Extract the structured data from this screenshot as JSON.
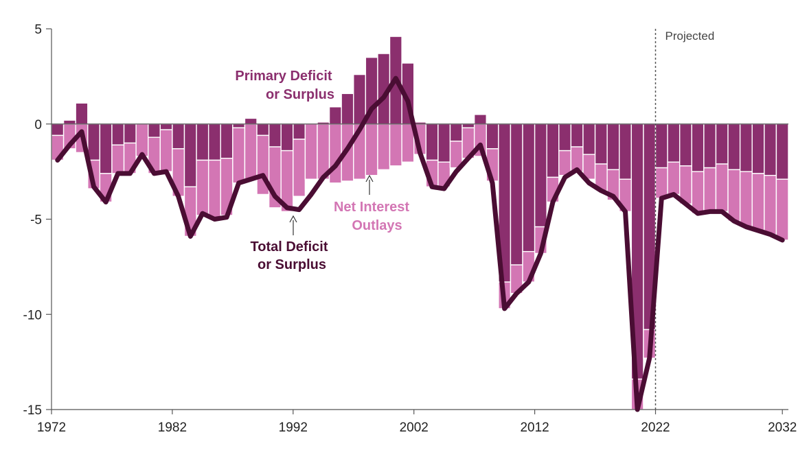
{
  "chart_data": {
    "type": "bar",
    "title": "",
    "xlabel": "",
    "ylabel": "",
    "ylim": [
      -15,
      5
    ],
    "xlim": [
      1972,
      2032
    ],
    "y_ticks": [
      5,
      0,
      -5,
      -10,
      -15
    ],
    "y_tick_labels": [
      "5",
      "0",
      "-5",
      "-10",
      "-15"
    ],
    "x_ticks": [
      1972,
      1982,
      1992,
      2002,
      2012,
      2022,
      2032
    ],
    "x_tick_labels": [
      "1972",
      "1982",
      "1992",
      "2002",
      "2012",
      "2022",
      "2032"
    ],
    "projection_start": 2022,
    "projected_label": "Projected",
    "grid": false,
    "stacked": true,
    "x": [
      1972,
      1973,
      1974,
      1975,
      1976,
      1977,
      1978,
      1979,
      1980,
      1981,
      1982,
      1983,
      1984,
      1985,
      1986,
      1987,
      1988,
      1989,
      1990,
      1991,
      1992,
      1993,
      1994,
      1995,
      1996,
      1997,
      1998,
      1999,
      2000,
      2001,
      2002,
      2003,
      2004,
      2005,
      2006,
      2007,
      2008,
      2009,
      2010,
      2011,
      2012,
      2013,
      2014,
      2015,
      2016,
      2017,
      2018,
      2019,
      2020,
      2021,
      2022,
      2023,
      2024,
      2025,
      2026,
      2027,
      2028,
      2029,
      2030,
      2031,
      2032
    ],
    "series": [
      {
        "name": "Primary Deficit or Surplus",
        "color": "#8b2f6e",
        "values": [
          -0.6,
          0.2,
          1.1,
          -1.9,
          -2.6,
          -1.1,
          -1.0,
          0.0,
          -0.7,
          -0.3,
          -1.3,
          -3.3,
          -1.9,
          -1.9,
          -1.8,
          -0.2,
          0.3,
          -0.6,
          -1.2,
          -1.4,
          -0.8,
          0.0,
          0.1,
          0.9,
          1.6,
          2.6,
          3.5,
          3.7,
          4.6,
          3.2,
          0.1,
          -1.9,
          -2.0,
          -0.9,
          -0.2,
          0.5,
          -1.3,
          -8.3,
          -7.4,
          -6.7,
          -5.4,
          -2.8,
          -1.4,
          -1.2,
          -1.6,
          -2.1,
          -2.4,
          -2.9,
          -13.4,
          -10.8,
          -2.3,
          -2.0,
          -2.2,
          -2.5,
          -2.3,
          -2.1,
          -2.4,
          -2.5,
          -2.6,
          -2.7,
          -2.9
        ]
      },
      {
        "name": "Net Interest Outlays",
        "color": "#d376b4",
        "values": [
          -1.3,
          -1.3,
          -1.5,
          -1.5,
          -1.5,
          -1.5,
          -1.6,
          -1.7,
          -1.9,
          -2.2,
          -2.5,
          -2.6,
          -2.9,
          -3.0,
          -3.0,
          -2.9,
          -2.9,
          -3.1,
          -3.2,
          -3.2,
          -3.0,
          -2.9,
          -2.9,
          -3.1,
          -3.0,
          -2.9,
          -2.7,
          -2.4,
          -2.2,
          -2.0,
          -1.6,
          -1.4,
          -1.3,
          -1.4,
          -1.6,
          -1.7,
          -1.7,
          -1.4,
          -1.5,
          -1.6,
          -1.4,
          -1.3,
          -1.3,
          -1.3,
          -1.3,
          -1.4,
          -1.6,
          -1.7,
          -1.6,
          -1.5,
          -1.6,
          -1.7,
          -2.0,
          -2.2,
          -2.3,
          -2.5,
          -2.7,
          -2.9,
          -3.0,
          -3.1,
          -3.2
        ]
      },
      {
        "name": "Total Deficit or Surplus",
        "color": "#4a0d33",
        "type": "line",
        "values": [
          -1.9,
          -1.1,
          -0.4,
          -3.3,
          -4.1,
          -2.6,
          -2.6,
          -1.6,
          -2.6,
          -2.5,
          -3.8,
          -5.9,
          -4.7,
          -5.0,
          -4.9,
          -3.1,
          -2.9,
          -2.7,
          -3.8,
          -4.4,
          -4.5,
          -3.7,
          -2.8,
          -2.2,
          -1.3,
          -0.3,
          0.8,
          1.4,
          2.4,
          1.2,
          -1.5,
          -3.3,
          -3.4,
          -2.5,
          -1.8,
          -1.1,
          -3.1,
          -9.7,
          -8.9,
          -8.3,
          -6.8,
          -4.1,
          -2.8,
          -2.4,
          -3.1,
          -3.5,
          -3.8,
          -4.6,
          -15.0,
          -12.3,
          -3.9,
          -3.7,
          -4.2,
          -4.7,
          -4.6,
          -4.6,
          -5.1,
          -5.4,
          -5.6,
          -5.8,
          -6.1
        ]
      }
    ],
    "annotations": [
      {
        "line1": "Primary Deficit",
        "line2": "or Surplus",
        "color": "#8b2f6e"
      },
      {
        "line1": "Net Interest",
        "line2": "Outlays",
        "color": "#d376b4"
      },
      {
        "line1": "Total Deficit",
        "line2": "or Surplus",
        "color": "#4a0d33"
      }
    ]
  }
}
